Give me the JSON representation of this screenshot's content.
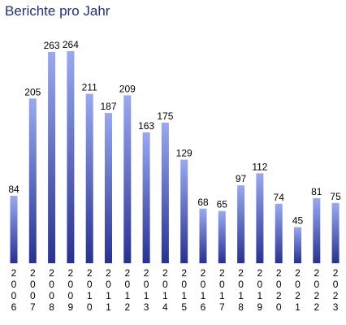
{
  "chart_data": {
    "type": "bar",
    "title": "Berichte pro Jahr",
    "xlabel": "",
    "ylabel": "",
    "categories": [
      "2006",
      "2007",
      "2008",
      "2009",
      "2010",
      "2011",
      "2012",
      "2013",
      "2014",
      "2015",
      "2016",
      "2017",
      "2018",
      "2019",
      "2020",
      "2021",
      "2022",
      "2023"
    ],
    "values": [
      84,
      205,
      263,
      264,
      211,
      187,
      209,
      163,
      175,
      129,
      68,
      65,
      97,
      112,
      74,
      45,
      81,
      75
    ],
    "ylim": [
      0,
      264
    ],
    "grid": false,
    "legend": "none",
    "bar_color_top": "#98a9f2",
    "bar_color_bottom": "#283193",
    "title_color": "#1f2f86"
  }
}
